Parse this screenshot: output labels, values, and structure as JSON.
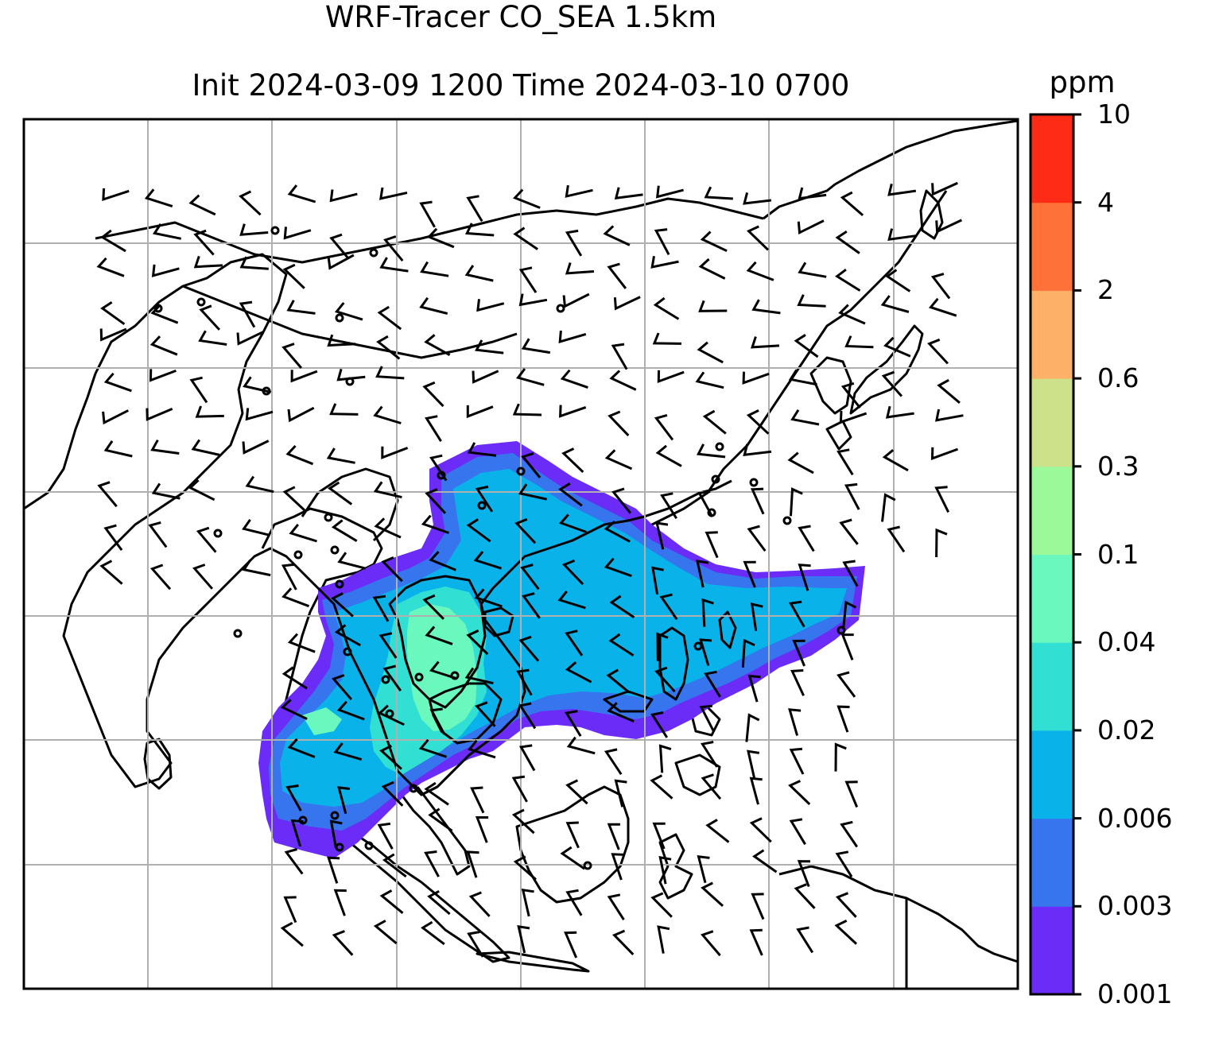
{
  "title": {
    "line1": "WRF-Tracer CO_SEA 1.5km",
    "line2": "Init 2024-03-09 1200 Time 2024-03-10 0700"
  },
  "colorbar": {
    "unit": "ppm",
    "levels": [
      "0.001",
      "0.003",
      "0.006",
      "0.02",
      "0.04",
      "0.1",
      "0.3",
      "0.6",
      "2",
      "4",
      "10"
    ],
    "colors": [
      "#6a2cf6",
      "#3775ee",
      "#09b3ea",
      "#31dfd3",
      "#6bf8be",
      "#9bf99a",
      "#cde08a",
      "#fdb067",
      "#fe7239",
      "#fe2c17"
    ]
  },
  "map": {
    "projection": "Southeast Asia regional domain",
    "gridlines": true,
    "field": "CO tracer concentration at 1.5km",
    "overlay": "wind barbs",
    "coastline_color": "#000000",
    "gridline_color": "#b0b0b0"
  }
}
